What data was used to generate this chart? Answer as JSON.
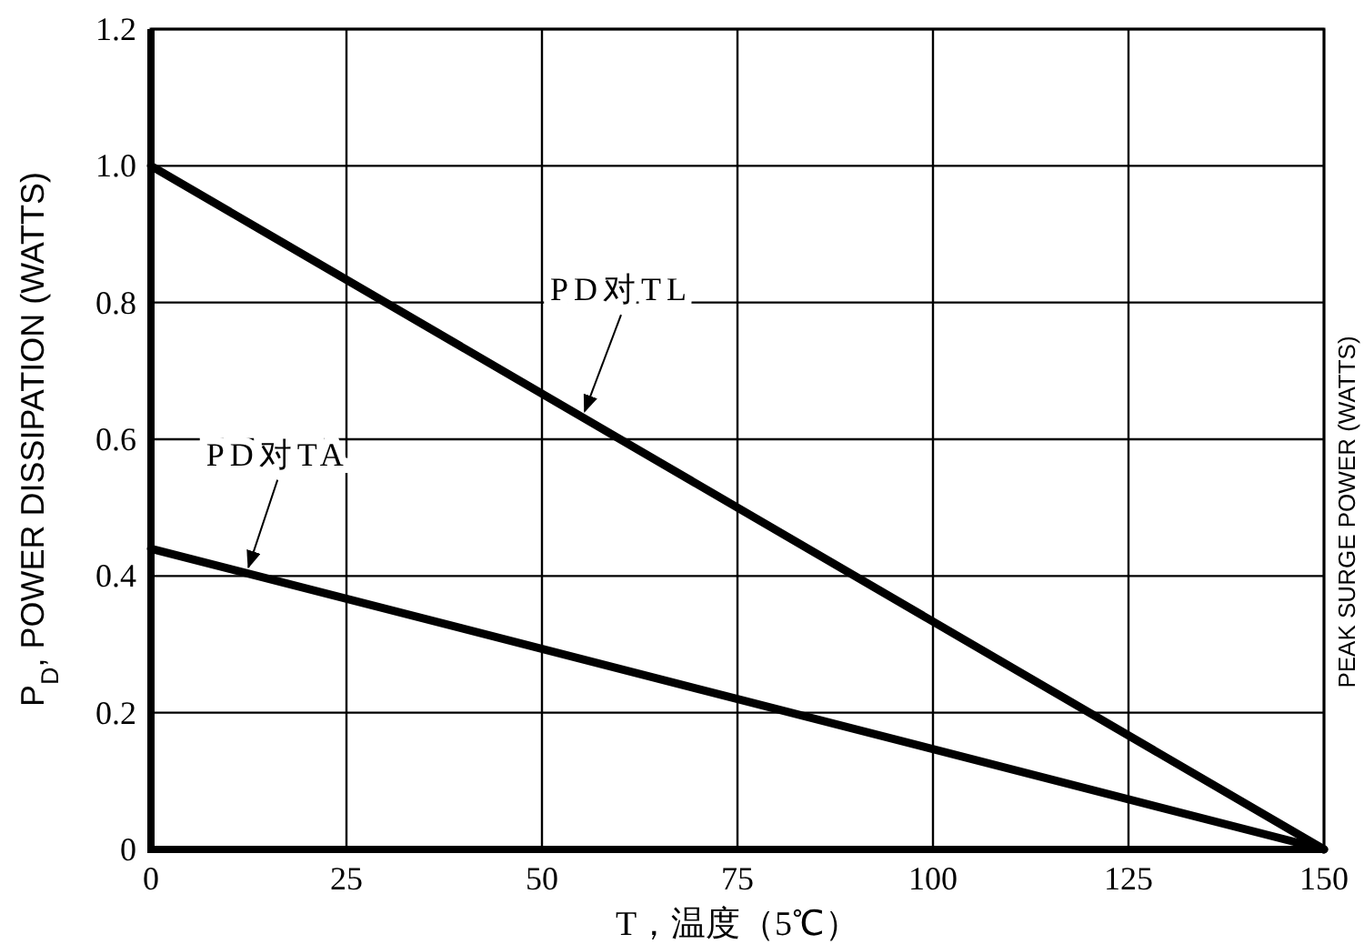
{
  "chart_data": {
    "type": "line",
    "xlabel": "T，温度（5℃）",
    "ylabel": "P$_{D}$, POWER DISSIPATION (WATTS)",
    "x": [
      0,
      150
    ],
    "series": [
      {
        "color": "#000000",
        "values": [
          1.0,
          0
        ]
      },
      {
        "color": "#000000",
        "values": [
          0.44,
          0
        ]
      }
    ],
    "xlim": [
      0,
      150
    ],
    "xticks": [
      0,
      25,
      50,
      75,
      100,
      125,
      150
    ],
    "ylim": [
      0,
      1.2
    ],
    "yticks": [
      0,
      0.2,
      0.4,
      0.6,
      0.8,
      {
        "value": 1.0,
        "label": "1.0"
      },
      1.2
    ],
    "grid": true,
    "marker": "none",
    "line_style": "solid",
    "annotations": [
      {
        "text": "PD对TL",
        "x": 55,
        "y": 0.633
      },
      {
        "text": "PD对TA",
        "x": 12,
        "y": 0.405
      },
      "PEAK SURGE POWER (WATTS)"
    ]
  }
}
